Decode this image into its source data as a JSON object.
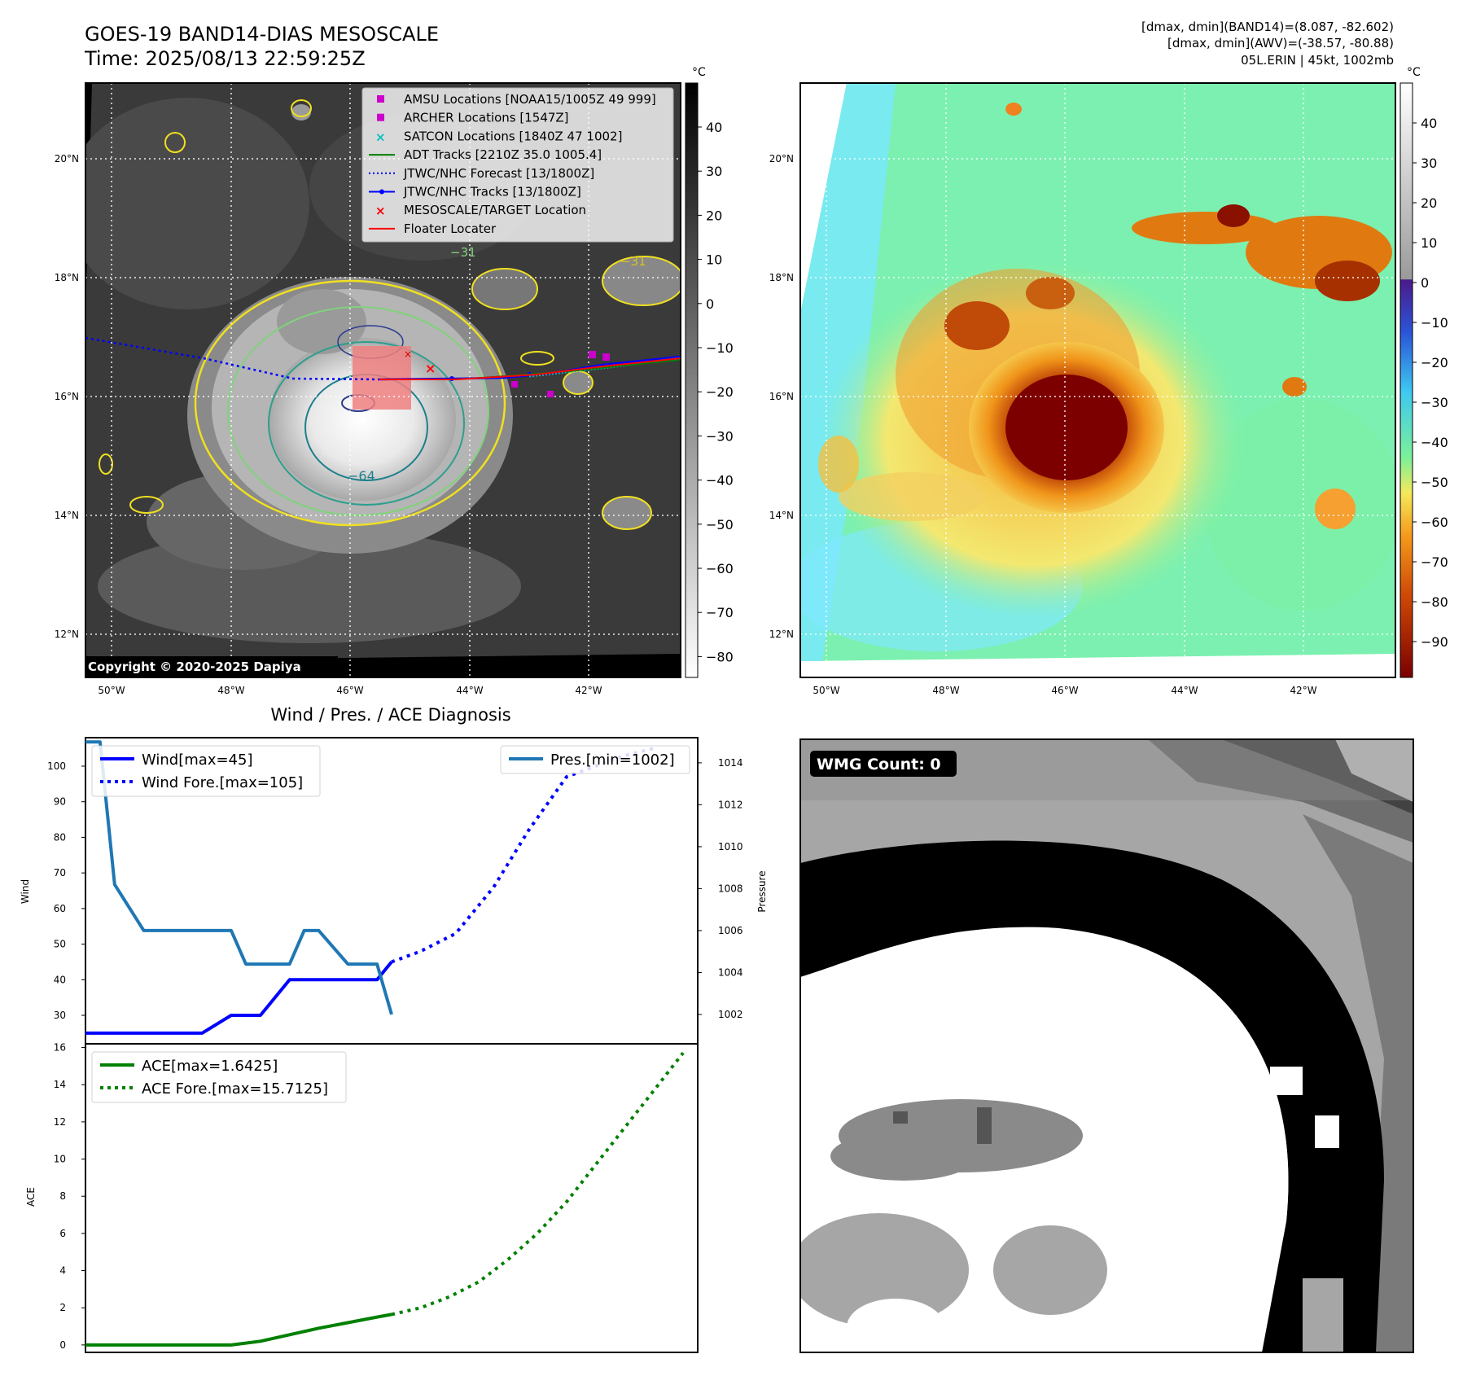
{
  "header": {
    "title_line1": "GOES-19 BAND14-DIAS MESOSCALE",
    "title_line2": "Time: 2025/08/13 22:59:25Z",
    "info_line1": "[dmax, dmin](BAND14)=(8.087, -82.602)",
    "info_line2": "[dmax, dmin](AWV)=(-38.57, -80.88)",
    "info_line3": "05L.ERIN | 45kt, 1002mb"
  },
  "maps": {
    "lon_ticks": [
      "50°W",
      "48°W",
      "46°W",
      "44°W",
      "42°W"
    ],
    "lat_ticks": [
      "20°N",
      "18°N",
      "16°N",
      "14°N",
      "12°N"
    ],
    "unit": "°C",
    "ir_colorbar_ticks": [
      "40",
      "30",
      "20",
      "10",
      "0",
      "−10",
      "−20",
      "−30",
      "−40",
      "−50",
      "−60",
      "−70",
      "−80"
    ],
    "awv_colorbar_ticks": [
      "40",
      "30",
      "20",
      "10",
      "0",
      "−10",
      "−20",
      "−30",
      "−40",
      "−50",
      "−60",
      "−70",
      "−80",
      "−90"
    ],
    "contour_labels": [
      "−31",
      "−31",
      "−64"
    ],
    "copyright": "Copyright © 2020-2025 Dapiya",
    "legend": [
      {
        "label": "AMSU Locations [NOAA15/1005Z 49 999]",
        "color": "#cc00cc",
        "marker": "square"
      },
      {
        "label": "ARCHER Locations [1547Z]",
        "color": "#cc00cc",
        "marker": "square"
      },
      {
        "label": "SATCON Locations [1840Z 47 1002]",
        "color": "#00bfbf",
        "marker": "x"
      },
      {
        "label": "ADT Tracks [2210Z 35.0 1005.4]",
        "color": "#008000",
        "marker": "line"
      },
      {
        "label": "JTWC/NHC Forecast [13/1800Z]",
        "color": "#0000ff",
        "marker": "dotted"
      },
      {
        "label": "JTWC/NHC Tracks [13/1800Z]",
        "color": "#0000ff",
        "marker": "line-dot"
      },
      {
        "label": "MESOSCALE/TARGET Location",
        "color": "#ff0000",
        "marker": "x"
      },
      {
        "label": "Floater Locater",
        "color": "#ff0000",
        "marker": "line"
      }
    ]
  },
  "diagnosis": {
    "title": "Wind / Pres. / ACE Diagnosis",
    "wind_ylabel": "Wind",
    "pres_ylabel": "Pressure",
    "ace_ylabel": "ACE",
    "wmg_label": "WMG Count: 0"
  },
  "chart_data": [
    {
      "type": "line",
      "title": "Wind / Pres. / ACE Diagnosis",
      "ylabel": "Wind",
      "y2label": "Pressure",
      "xlim": [
        0,
        21
      ],
      "ylim": [
        22,
        108
      ],
      "y2lim": [
        1000.6,
        1015.2
      ],
      "yticks": [
        30,
        40,
        50,
        60,
        70,
        80,
        90,
        100
      ],
      "y2ticks": [
        1002,
        1004,
        1006,
        1008,
        1010,
        1012,
        1014
      ],
      "series": [
        {
          "name": "Wind[max=45]",
          "axis": "left",
          "style": "solid",
          "color": "#0000ff",
          "x": [
            0,
            1,
            2,
            3,
            4,
            5,
            6,
            7,
            8,
            9,
            10,
            10.5
          ],
          "y": [
            25,
            25,
            25,
            25,
            25,
            30,
            30,
            40,
            40,
            40,
            40,
            45
          ]
        },
        {
          "name": "Wind Fore.[max=105]",
          "axis": "left",
          "style": "dotted",
          "color": "#0000ff",
          "x": [
            10.5,
            11.5,
            12.7,
            14,
            15.2,
            16.5,
            17.5,
            18.5,
            19.5
          ],
          "y": [
            45,
            48,
            53,
            66,
            82,
            97,
            100,
            103,
            105
          ]
        },
        {
          "name": "Pres.[min=1002]",
          "axis": "right",
          "style": "solid",
          "color": "#1f77b4",
          "x": [
            0,
            0.5,
            1,
            2,
            3,
            4,
            5,
            5.5,
            6,
            7,
            7.5,
            8,
            9,
            10,
            10.5
          ],
          "y": [
            1015,
            1015,
            1008.2,
            1006,
            1006,
            1006,
            1006,
            1004.4,
            1004.4,
            1004.4,
            1006,
            1006,
            1004.4,
            1004.4,
            1002
          ]
        }
      ]
    },
    {
      "type": "line",
      "ylabel": "ACE",
      "xlim": [
        0,
        21
      ],
      "ylim": [
        -0.4,
        16.2
      ],
      "yticks": [
        0,
        2,
        4,
        6,
        8,
        10,
        12,
        14,
        16
      ],
      "series": [
        {
          "name": "ACE[max=1.6425]",
          "style": "solid",
          "color": "#008000",
          "x": [
            0,
            1,
            2,
            3,
            4,
            5,
            6,
            7,
            8,
            9,
            10,
            10.5
          ],
          "y": [
            0,
            0,
            0,
            0,
            0,
            0,
            0.2,
            0.55,
            0.9,
            1.2,
            1.5,
            1.6425
          ]
        },
        {
          "name": "ACE Fore.[max=15.7125]",
          "style": "dotted",
          "color": "#008000",
          "x": [
            10.5,
            11.5,
            12.5,
            13.5,
            14.5,
            15.5,
            16.5,
            17.5,
            18.5,
            19.5,
            20.5
          ],
          "y": [
            1.6425,
            2.0,
            2.6,
            3.4,
            4.6,
            6.0,
            7.7,
            9.7,
            11.7,
            13.7,
            15.7125
          ]
        }
      ]
    }
  ]
}
